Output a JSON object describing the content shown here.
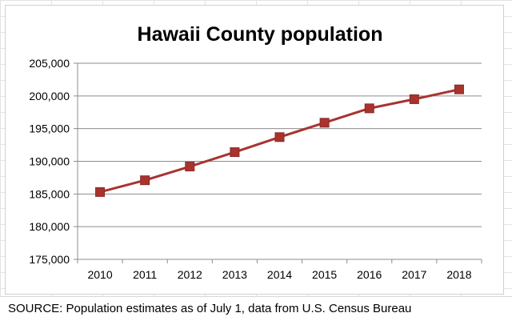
{
  "chart_data": {
    "type": "line",
    "title": "Hawaii County population",
    "xlabel": "",
    "ylabel": "",
    "categories": [
      "2010",
      "2011",
      "2012",
      "2013",
      "2014",
      "2015",
      "2016",
      "2017",
      "2018"
    ],
    "series": [
      {
        "values": [
          185300,
          187100,
          189200,
          191400,
          193700,
          195900,
          198100,
          199500,
          201000
        ],
        "color": "#a8332f",
        "marker": "square"
      }
    ],
    "ylim": [
      175000,
      205000
    ],
    "yticks": [
      175000,
      180000,
      185000,
      190000,
      195000,
      200000,
      205000
    ],
    "ytick_labels": [
      "175,000",
      "180,000",
      "185,000",
      "190,000",
      "195,000",
      "200,000",
      "205,000"
    ],
    "grid": "horizontal",
    "legend": "none"
  },
  "footer": {
    "source": "SOURCE: Population estimates as of July 1, data from U.S. Census Bureau"
  }
}
